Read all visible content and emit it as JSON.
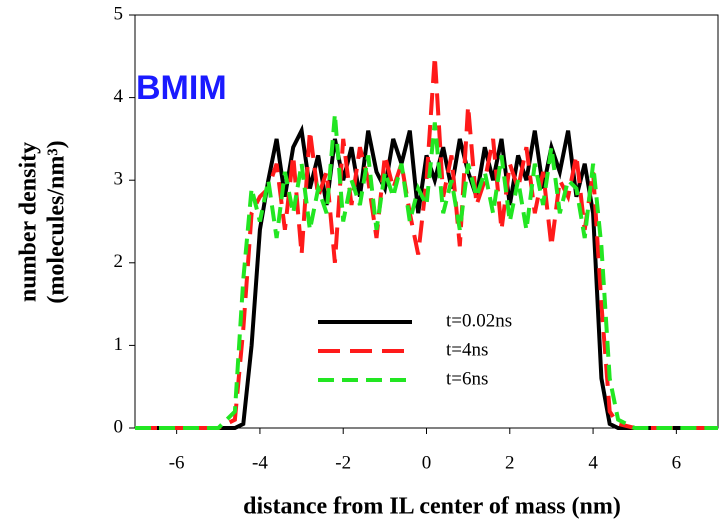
{
  "chart_data": {
    "type": "line",
    "title": "BMIM",
    "title_color": "#1a1aff",
    "x_label": "distance from IL center of mass (nm)",
    "y_label": [
      "number density",
      "(molecules/nm³)"
    ],
    "xlim": [
      -7,
      7
    ],
    "xticks": [
      -6,
      -4,
      -2,
      0,
      2,
      4,
      6
    ],
    "ylim": [
      0,
      5
    ],
    "yticks": [
      0,
      1,
      2,
      3,
      4,
      5
    ],
    "x": [
      -7,
      -6,
      -5,
      -4.6,
      -4.4,
      -4.2,
      -4,
      -3.8,
      -3.6,
      -3.4,
      -3.2,
      -3,
      -2.8,
      -2.6,
      -2.4,
      -2.2,
      -2,
      -1.8,
      -1.6,
      -1.4,
      -1.2,
      -1,
      -0.8,
      -0.6,
      -0.4,
      -0.2,
      0,
      0.2,
      0.4,
      0.6,
      0.8,
      1,
      1.2,
      1.4,
      1.6,
      1.8,
      2,
      2.2,
      2.4,
      2.6,
      2.8,
      3,
      3.2,
      3.4,
      3.6,
      3.8,
      4,
      4.2,
      4.4,
      4.6,
      5,
      6,
      7
    ],
    "series": [
      {
        "name": "t=0.02ns",
        "color": "#000000",
        "dash": "none",
        "values": [
          0,
          0,
          0,
          0,
          0.05,
          1.0,
          2.4,
          3.0,
          3.5,
          2.8,
          3.4,
          3.6,
          2.9,
          3.3,
          2.7,
          3.5,
          3.0,
          3.4,
          2.8,
          3.6,
          3.1,
          2.9,
          3.5,
          3.2,
          3.6,
          2.6,
          3.3,
          3.0,
          3.4,
          2.9,
          3.5,
          3.1,
          2.8,
          3.4,
          3.0,
          3.5,
          2.7,
          3.3,
          3.0,
          3.6,
          2.9,
          3.4,
          3.1,
          3.6,
          2.8,
          3.2,
          2.6,
          0.6,
          0.05,
          0,
          0,
          0,
          0
        ]
      },
      {
        "name": "t=4ns",
        "color": "#ff1a1a",
        "dash": "22 10",
        "values": [
          0,
          0,
          0,
          0.1,
          1.2,
          2.6,
          2.8,
          2.9,
          3.2,
          2.4,
          3.3,
          2.1,
          3.6,
          2.8,
          3.1,
          2.0,
          3.5,
          2.7,
          3.4,
          3.0,
          2.3,
          3.3,
          2.9,
          3.2,
          2.6,
          2.1,
          3.0,
          4.5,
          2.8,
          3.3,
          2.2,
          3.9,
          2.7,
          3.0,
          3.5,
          2.4,
          3.2,
          2.9,
          3.4,
          2.6,
          3.1,
          2.2,
          3.0,
          2.8,
          3.3,
          2.4,
          3.1,
          1.5,
          0.2,
          0.05,
          0,
          0,
          0
        ]
      },
      {
        "name": "t=6ns",
        "color": "#22e622",
        "dash": "16 8",
        "values": [
          0,
          0,
          0,
          0.2,
          1.8,
          2.9,
          2.5,
          3.0,
          2.3,
          3.1,
          2.6,
          3.2,
          2.4,
          2.9,
          2.6,
          3.8,
          2.5,
          3.0,
          2.7,
          3.3,
          2.4,
          3.1,
          2.8,
          3.2,
          2.5,
          2.9,
          2.7,
          3.7,
          2.6,
          3.0,
          2.4,
          3.2,
          2.8,
          3.1,
          2.6,
          3.3,
          2.5,
          3.0,
          2.4,
          3.2,
          2.7,
          3.4,
          2.6,
          3.0,
          2.9,
          2.3,
          3.2,
          2.2,
          0.6,
          0.1,
          0,
          0,
          0
        ]
      }
    ]
  }
}
